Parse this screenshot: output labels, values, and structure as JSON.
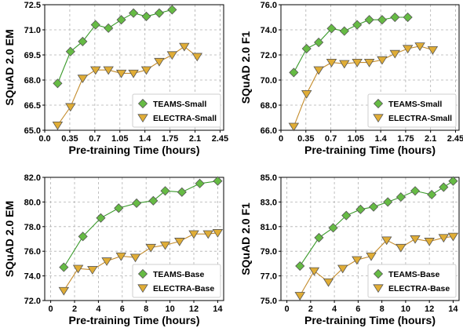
{
  "colors": {
    "teams_line": "#3a9a2a",
    "teams_marker": "#66bb44",
    "electra_line": "#c48c2c",
    "electra_marker": "#e0ad36",
    "marker_edge": "#555555"
  },
  "chart_data": [
    {
      "type": "line",
      "xlabel": "Pre-training Time (hours)",
      "ylabel": "SQuAD 2.0 EM",
      "xlim": [
        0,
        2.5
      ],
      "ylim": [
        65.0,
        72.5
      ],
      "xticks": [
        "0.0",
        "0.35",
        "0.7",
        "1.05",
        "1.4",
        "1.75",
        "2.1",
        "2.45"
      ],
      "yticks": [
        "65.0",
        "66.5",
        "68.0",
        "69.5",
        "71.0",
        "72.5"
      ],
      "grid": true,
      "legend": "lower-right",
      "series": [
        {
          "name": "TEAMS-Small",
          "marker": "diamond",
          "x": [
            0.18,
            0.36,
            0.53,
            0.71,
            0.89,
            1.07,
            1.24,
            1.42,
            1.6,
            1.78,
            1.95,
            2.13
          ],
          "y": [
            67.8,
            69.7,
            70.3,
            71.3,
            71.1,
            71.6,
            72.0,
            71.8,
            72.0,
            72.2,
            null,
            null
          ]
        },
        {
          "name": "ELECTRA-Small",
          "marker": "triangle-down",
          "x": [
            0.18,
            0.36,
            0.53,
            0.71,
            0.89,
            1.07,
            1.24,
            1.42,
            1.6,
            1.78,
            1.95,
            2.13
          ],
          "y": [
            65.3,
            66.4,
            68.1,
            68.6,
            68.6,
            68.4,
            68.4,
            68.6,
            69.1,
            69.5,
            70.0,
            69.4
          ]
        }
      ]
    },
    {
      "type": "line",
      "xlabel": "Pre-training Time (hours)",
      "ylabel": "SQuAD 2.0 F1",
      "xlim": [
        0,
        2.5
      ],
      "ylim": [
        66.0,
        76.0
      ],
      "xticks": [
        "0",
        "0.35",
        "0.7",
        "1.05",
        "1.4",
        "1.75",
        "2.1",
        "2.45"
      ],
      "yticks": [
        "66.0",
        "68.0",
        "70.0",
        "72.0",
        "74.0",
        "76.0"
      ],
      "grid": true,
      "legend": "lower-right",
      "series": [
        {
          "name": "TEAMS-Small",
          "marker": "diamond",
          "x": [
            0.18,
            0.36,
            0.53,
            0.71,
            0.89,
            1.07,
            1.24,
            1.42,
            1.6,
            1.78,
            1.95,
            2.13
          ],
          "y": [
            70.6,
            72.5,
            73.0,
            74.1,
            73.9,
            74.4,
            74.8,
            74.8,
            75.0,
            75.0,
            null,
            null
          ]
        },
        {
          "name": "ELECTRA-Small",
          "marker": "triangle-down",
          "x": [
            0.18,
            0.36,
            0.53,
            0.71,
            0.89,
            1.07,
            1.24,
            1.42,
            1.6,
            1.78,
            1.95,
            2.13
          ],
          "y": [
            66.3,
            68.9,
            70.8,
            71.4,
            71.3,
            71.4,
            71.4,
            71.6,
            72.1,
            72.5,
            72.7,
            72.4
          ]
        }
      ]
    },
    {
      "type": "line",
      "xlabel": "Pre-training Time (hours)",
      "ylabel": "SQuAD 2.0 EM",
      "xlim": [
        -0.5,
        14.5
      ],
      "ylim": [
        72.0,
        82.0
      ],
      "xticks": [
        "0",
        "2",
        "4",
        "6",
        "8",
        "10",
        "12",
        "14"
      ],
      "yticks": [
        "72.0",
        "74.0",
        "76.0",
        "78.0",
        "80.0",
        "82.0"
      ],
      "grid": true,
      "legend": "lower-right",
      "series": [
        {
          "name": "TEAMS-Base",
          "marker": "diamond",
          "x": [
            1.1,
            2.7,
            4.2,
            5.7,
            7.2,
            8.6,
            9.6,
            11.0,
            12.5,
            14.0
          ],
          "y": [
            74.7,
            77.2,
            78.7,
            79.5,
            79.9,
            80.1,
            80.9,
            80.8,
            81.5,
            81.7
          ]
        },
        {
          "name": "ELECTRA-Base",
          "marker": "triangle-down",
          "x": [
            1.1,
            2.3,
            3.5,
            4.7,
            5.9,
            7.1,
            8.4,
            9.6,
            10.8,
            12.0,
            13.2,
            14.0
          ],
          "y": [
            72.8,
            74.6,
            74.5,
            75.2,
            75.6,
            75.5,
            76.3,
            76.5,
            76.8,
            77.4,
            77.4,
            77.5
          ]
        }
      ]
    },
    {
      "type": "line",
      "xlabel": "Pre-training Time (hours)",
      "ylabel": "SQuAD 2.0 F1",
      "xlim": [
        -0.5,
        14.5
      ],
      "ylim": [
        75.0,
        85.0
      ],
      "xticks": [
        "0",
        "2",
        "4",
        "6",
        "8",
        "10",
        "12",
        "14"
      ],
      "yticks": [
        "75.0",
        "77.0",
        "79.0",
        "81.0",
        "83.0",
        "85.0"
      ],
      "grid": true,
      "legend": "lower-right",
      "series": [
        {
          "name": "TEAMS-Base",
          "marker": "diamond",
          "x": [
            1.1,
            2.7,
            3.9,
            5.0,
            6.2,
            7.3,
            8.5,
            9.6,
            10.8,
            12.2,
            13.2,
            14.0
          ],
          "y": [
            77.8,
            80.1,
            80.9,
            81.9,
            82.4,
            82.6,
            83.0,
            83.4,
            83.9,
            83.6,
            84.2,
            84.7
          ]
        },
        {
          "name": "ELECTRA-Base",
          "marker": "triangle-down",
          "x": [
            1.1,
            2.3,
            3.5,
            4.7,
            5.9,
            7.1,
            8.4,
            9.6,
            10.8,
            12.0,
            13.2,
            14.0
          ],
          "y": [
            75.4,
            77.4,
            76.5,
            77.6,
            78.3,
            78.6,
            79.9,
            79.3,
            80.0,
            79.8,
            80.1,
            80.2
          ]
        }
      ]
    }
  ]
}
